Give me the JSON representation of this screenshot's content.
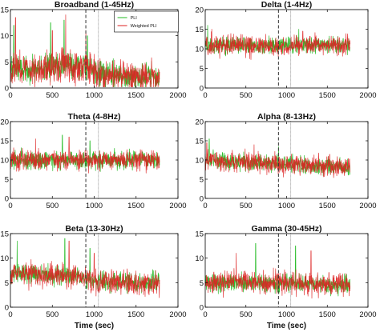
{
  "figure": {
    "series_names": [
      "PLI",
      "Weighted PLI"
    ],
    "x_label": "Time (sec)",
    "colors": {
      "PLI": "#22bb22",
      "Weighted PLI": "#dd2222",
      "marker_dashed": "#333333",
      "marker_dotted": "#777777"
    }
  },
  "chart_data": [
    {
      "type": "line",
      "title": "Broadband (1-45Hz)",
      "xlabel": "",
      "xlim": [
        0,
        2000
      ],
      "ylim": [
        0,
        15
      ],
      "xticks": [
        0,
        500,
        1000,
        1500,
        2000
      ],
      "yticks": [
        0,
        5,
        10,
        15
      ],
      "grid": false,
      "legend": "top-right",
      "markers": {
        "dashed_x": 900,
        "dotted_x": 1050
      },
      "series": [
        {
          "name": "PLI",
          "x_range": [
            0,
            1780
          ],
          "n_points": 600,
          "profile": [
            [
              0,
              4
            ],
            [
              300,
              3.5
            ],
            [
              600,
              4.5
            ],
            [
              900,
              4
            ],
            [
              1050,
              2.5
            ],
            [
              1780,
              2
            ]
          ],
          "noise": 1.8,
          "spikes": [
            [
              40,
              12
            ],
            [
              480,
              12.5
            ],
            [
              640,
              13
            ],
            [
              920,
              10
            ]
          ]
        },
        {
          "name": "Weighted PLI",
          "x_range": [
            0,
            1780
          ],
          "n_points": 600,
          "profile": [
            [
              0,
              4
            ],
            [
              300,
              3.5
            ],
            [
              600,
              4.5
            ],
            [
              900,
              4
            ],
            [
              1050,
              2.5
            ],
            [
              1780,
              2
            ]
          ],
          "noise": 2.2,
          "spikes": [
            [
              60,
              13.5
            ],
            [
              500,
              11
            ],
            [
              660,
              14
            ],
            [
              900,
              11
            ]
          ]
        }
      ]
    },
    {
      "type": "line",
      "title": "Delta (1-4Hz)",
      "xlabel": "",
      "xlim": [
        0,
        2000
      ],
      "ylim": [
        0,
        20
      ],
      "xticks": [
        0,
        500,
        1000,
        1500,
        2000
      ],
      "yticks": [
        0,
        5,
        10,
        15,
        20
      ],
      "grid": false,
      "markers": {
        "dashed_x": 900,
        "dotted_x": 1050
      },
      "series": [
        {
          "name": "PLI",
          "x_range": [
            0,
            1780
          ],
          "n_points": 600,
          "profile": [
            [
              0,
              11
            ],
            [
              900,
              10.5
            ],
            [
              1050,
              11
            ],
            [
              1780,
              11
            ]
          ],
          "noise": 1.5,
          "spikes": [
            [
              30,
              16
            ],
            [
              1150,
              15
            ]
          ]
        },
        {
          "name": "Weighted PLI",
          "x_range": [
            0,
            1780
          ],
          "n_points": 600,
          "profile": [
            [
              0,
              11
            ],
            [
              900,
              10.5
            ],
            [
              1050,
              11
            ],
            [
              1780,
              11
            ]
          ],
          "noise": 1.8,
          "spikes": [
            [
              80,
              15
            ],
            [
              1200,
              14.5
            ]
          ]
        }
      ]
    },
    {
      "type": "line",
      "title": "Theta (4-8Hz)",
      "xlabel": "",
      "xlim": [
        0,
        2000
      ],
      "ylim": [
        0,
        20
      ],
      "xticks": [
        0,
        500,
        1000,
        1500,
        2000
      ],
      "yticks": [
        0,
        5,
        10,
        15,
        20
      ],
      "grid": false,
      "markers": {
        "dashed_x": 900,
        "dotted_x": 1050
      },
      "series": [
        {
          "name": "PLI",
          "x_range": [
            0,
            1780
          ],
          "n_points": 600,
          "profile": [
            [
              0,
              10
            ],
            [
              900,
              10
            ],
            [
              1780,
              10
            ]
          ],
          "noise": 1.6,
          "spikes": [
            [
              620,
              16.5
            ],
            [
              950,
              15
            ]
          ]
        },
        {
          "name": "Weighted PLI",
          "x_range": [
            0,
            1780
          ],
          "n_points": 600,
          "profile": [
            [
              0,
              10
            ],
            [
              900,
              10
            ],
            [
              1780,
              10
            ]
          ],
          "noise": 1.9,
          "spikes": [
            [
              300,
              15.5
            ],
            [
              700,
              16
            ]
          ]
        }
      ]
    },
    {
      "type": "line",
      "title": "Alpha (8-13Hz)",
      "xlabel": "",
      "xlim": [
        0,
        2000
      ],
      "ylim": [
        0,
        20
      ],
      "xticks": [
        0,
        500,
        1000,
        1500,
        2000
      ],
      "yticks": [
        0,
        5,
        10,
        15,
        20
      ],
      "grid": false,
      "markers": {
        "dashed_x": 900,
        "dotted_x": 1050
      },
      "series": [
        {
          "name": "PLI",
          "x_range": [
            0,
            1780
          ],
          "n_points": 600,
          "profile": [
            [
              0,
              10
            ],
            [
              500,
              9.5
            ],
            [
              900,
              9
            ],
            [
              1780,
              8
            ]
          ],
          "noise": 1.5,
          "spikes": [
            [
              50,
              15.5
            ],
            [
              900,
              13.5
            ]
          ]
        },
        {
          "name": "Weighted PLI",
          "x_range": [
            0,
            1780
          ],
          "n_points": 600,
          "profile": [
            [
              0,
              10
            ],
            [
              500,
              9.5
            ],
            [
              900,
              9
            ],
            [
              1780,
              8
            ]
          ],
          "noise": 1.8,
          "spikes": [
            [
              20,
              14.5
            ],
            [
              600,
              14
            ]
          ]
        }
      ]
    },
    {
      "type": "line",
      "title": "Beta (13-30Hz)",
      "xlabel": "Time (sec)",
      "xlim": [
        0,
        2000
      ],
      "ylim": [
        0,
        15
      ],
      "xticks": [
        0,
        500,
        1000,
        1500,
        2000
      ],
      "yticks": [
        0,
        5,
        10,
        15
      ],
      "grid": false,
      "markers": {
        "dashed_x": 900,
        "dotted_x": 1050
      },
      "series": [
        {
          "name": "PLI",
          "x_range": [
            0,
            1780
          ],
          "n_points": 600,
          "profile": [
            [
              0,
              7
            ],
            [
              500,
              6.5
            ],
            [
              900,
              6
            ],
            [
              1050,
              5
            ],
            [
              1780,
              5
            ]
          ],
          "noise": 1.4,
          "spikes": [
            [
              80,
              13.5
            ],
            [
              650,
              14
            ],
            [
              950,
              12
            ]
          ]
        },
        {
          "name": "Weighted PLI",
          "x_range": [
            0,
            1780
          ],
          "n_points": 600,
          "profile": [
            [
              0,
              7
            ],
            [
              500,
              6.5
            ],
            [
              900,
              6
            ],
            [
              1050,
              5
            ],
            [
              1780,
              5
            ]
          ],
          "noise": 1.7,
          "spikes": [
            [
              700,
              13.5
            ],
            [
              1000,
              11
            ]
          ]
        }
      ]
    },
    {
      "type": "line",
      "title": "Gamma (30-45Hz)",
      "xlabel": "Time (sec)",
      "xlim": [
        0,
        2000
      ],
      "ylim": [
        0,
        15
      ],
      "xticks": [
        0,
        500,
        1000,
        1500,
        2000
      ],
      "yticks": [
        0,
        5,
        10,
        15
      ],
      "grid": false,
      "markers": {
        "dashed_x": 900,
        "dotted_x": 1050
      },
      "series": [
        {
          "name": "PLI",
          "x_range": [
            0,
            1780
          ],
          "n_points": 600,
          "profile": [
            [
              0,
              5
            ],
            [
              900,
              5
            ],
            [
              1780,
              4.5
            ]
          ],
          "noise": 1.3,
          "spikes": [
            [
              620,
              13
            ],
            [
              1110,
              12.5
            ]
          ]
        },
        {
          "name": "Weighted PLI",
          "x_range": [
            0,
            1780
          ],
          "n_points": 600,
          "profile": [
            [
              0,
              5
            ],
            [
              900,
              5
            ],
            [
              1780,
              4.5
            ]
          ],
          "noise": 1.6,
          "spikes": [
            [
              380,
              11
            ],
            [
              1300,
              11.5
            ]
          ]
        }
      ]
    }
  ]
}
